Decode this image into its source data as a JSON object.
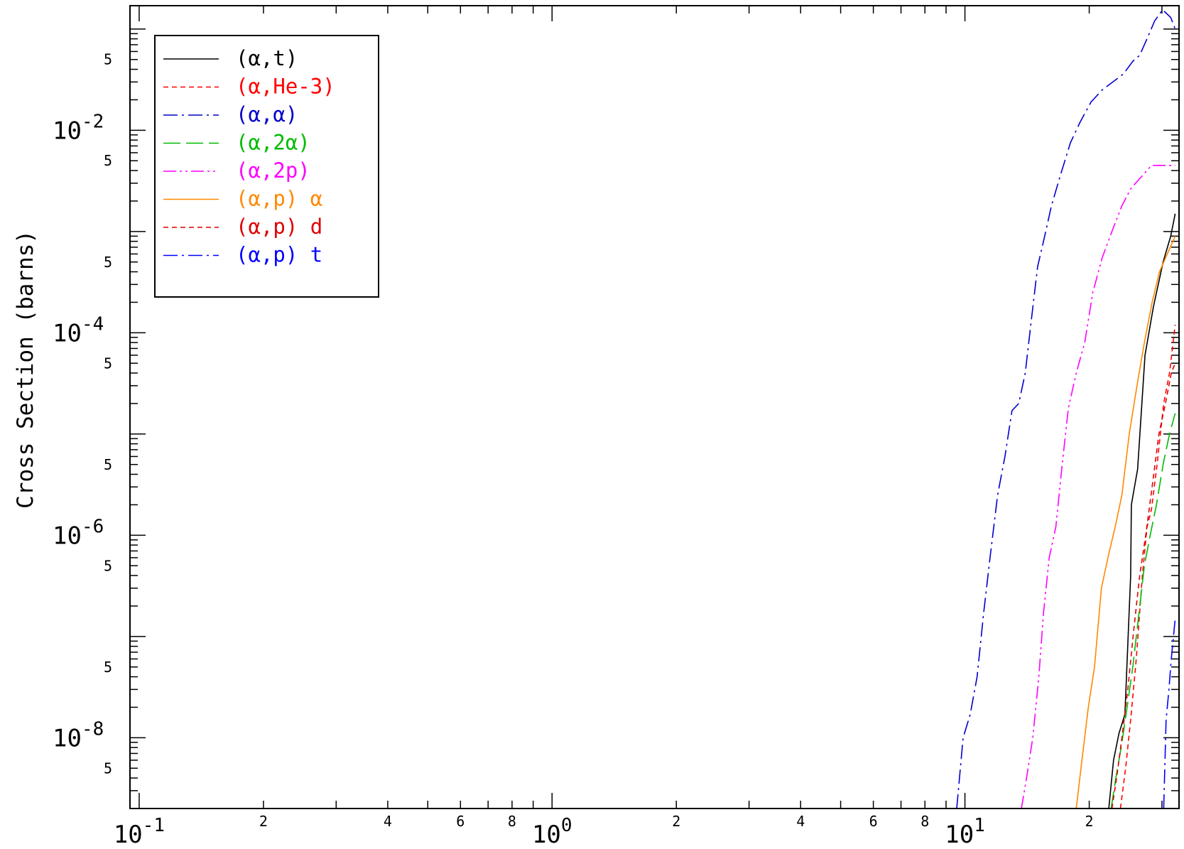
{
  "chart_data": {
    "type": "line",
    "title": "",
    "xlabel": "",
    "ylabel": "Cross Section (barns)",
    "xscale": "log",
    "yscale": "log",
    "xlim": [
      0.095,
      33
    ],
    "ylim": [
      2e-09,
      0.17
    ],
    "x_major_ticks": [
      {
        "value": 0.1,
        "base": "10",
        "exp": "-1"
      },
      {
        "value": 1,
        "base": "10",
        "exp": "0"
      },
      {
        "value": 10,
        "base": "10",
        "exp": "1"
      }
    ],
    "x_minor_labels": [
      {
        "value": 0.2,
        "label": "2"
      },
      {
        "value": 0.4,
        "label": "4"
      },
      {
        "value": 0.6,
        "label": "6"
      },
      {
        "value": 0.8,
        "label": "8"
      },
      {
        "value": 2,
        "label": "2"
      },
      {
        "value": 4,
        "label": "4"
      },
      {
        "value": 6,
        "label": "6"
      },
      {
        "value": 8,
        "label": "8"
      },
      {
        "value": 20,
        "label": "2"
      }
    ],
    "y_major_ticks": [
      {
        "value": 0.01,
        "base": "10",
        "exp": "-2"
      },
      {
        "value": 0.0001,
        "base": "10",
        "exp": "-4"
      },
      {
        "value": 1e-06,
        "base": "10",
        "exp": "-6"
      },
      {
        "value": 1e-08,
        "base": "10",
        "exp": "-8"
      }
    ],
    "y_minor_labels": [
      {
        "value": 0.05,
        "label": "5"
      },
      {
        "value": 0.005,
        "label": "5"
      },
      {
        "value": 0.0005,
        "label": "5"
      },
      {
        "value": 5e-05,
        "label": "5"
      },
      {
        "value": 5e-06,
        "label": "5"
      },
      {
        "value": 5e-07,
        "label": "5"
      },
      {
        "value": 5e-08,
        "label": "5"
      },
      {
        "value": 5e-09,
        "label": "5"
      }
    ],
    "grid": false,
    "legend_position": "top-left",
    "series": [
      {
        "name": "(α,t)",
        "color": "#000000",
        "dash": "solid",
        "x": [
          22.3,
          22.9,
          23.6,
          24.4,
          25.2,
          25.3,
          26.2,
          27.3,
          28.6,
          30.2,
          31.5,
          32.3
        ],
        "y": [
          2e-09,
          6e-09,
          1.1e-08,
          1.7e-08,
          4e-07,
          2e-06,
          4.5e-06,
          6e-05,
          0.00018,
          0.0005,
          0.0009,
          0.0015
        ]
      },
      {
        "name": "(α,He-3)",
        "color": "#ff0000",
        "dash": "dashed",
        "x": [
          23.8,
          24.5,
          25.2,
          26.0,
          26.9,
          27.6,
          28.3,
          29.2,
          30.3,
          31.3,
          32.3
        ],
        "y": [
          2e-09,
          5e-09,
          1.5e-08,
          6e-08,
          4e-07,
          1.2e-06,
          1.8e-06,
          5e-06,
          2e-05,
          4e-05,
          0.00012
        ]
      },
      {
        "name": "(α,α)",
        "color": "#0000cc",
        "dash": "dashdot",
        "x": [
          9.55,
          9.9,
          10.3,
          10.7,
          11.1,
          11.5,
          12.0,
          12.5,
          13.0,
          13.5,
          14.0,
          14.5,
          15.0,
          15.5,
          16.2,
          17.0,
          18.0,
          19.0,
          20.2,
          21.5,
          22.8,
          24.2,
          25.5,
          26.5,
          27.6,
          28.8,
          30.1,
          31.5,
          32.3
        ],
        "y": [
          2e-09,
          1e-08,
          1.7e-08,
          4e-08,
          1.7e-07,
          6e-07,
          2.5e-06,
          6e-06,
          1.7e-05,
          2e-05,
          4e-05,
          0.00014,
          0.00045,
          0.0008,
          0.0018,
          0.0035,
          0.0075,
          0.012,
          0.019,
          0.025,
          0.03,
          0.036,
          0.048,
          0.055,
          0.08,
          0.12,
          0.155,
          0.13,
          0.1
        ]
      },
      {
        "name": "(α,2α)",
        "color": "#00bb00",
        "dash": "longdash",
        "x": [
          22.6,
          23.2,
          23.9,
          24.7,
          25.5,
          26.3,
          27.2,
          28.1,
          29.1,
          30.2,
          31.3,
          32.3
        ],
        "y": [
          2e-09,
          4e-09,
          8e-09,
          2e-08,
          5e-08,
          1.5e-07,
          5e-07,
          1e-06,
          2e-06,
          5e-06,
          1e-05,
          1.6e-05
        ]
      },
      {
        "name": "(α,2p)",
        "color": "#ff00ff",
        "dash": "dashdotdot",
        "x": [
          13.7,
          14.1,
          14.6,
          15.1,
          15.5,
          16.0,
          16.6,
          17.2,
          17.8,
          18.6,
          19.5,
          20.4,
          21.5,
          22.7,
          24.0,
          25.3,
          26.8,
          28.3,
          30.0,
          31.5,
          32.3
        ],
        "y": [
          2e-09,
          4e-09,
          1e-08,
          4e-08,
          1.7e-07,
          6e-07,
          1.2e-06,
          5e-06,
          1.8e-05,
          4e-05,
          8e-05,
          0.00025,
          0.00055,
          0.001,
          0.0018,
          0.0027,
          0.0035,
          0.0045,
          0.0045,
          0.0045,
          0.0045
        ]
      },
      {
        "name": "(α,p) α",
        "color": "#ff8800",
        "dash": "solid",
        "x": [
          18.6,
          19.2,
          19.9,
          20.6,
          21.4,
          22.2,
          23.1,
          24.0,
          25.0,
          26.1,
          27.2,
          28.4,
          29.6,
          30.9,
          32.3
        ],
        "y": [
          2e-09,
          6e-09,
          2e-08,
          5e-08,
          3e-07,
          6e-07,
          1.2e-06,
          2.5e-06,
          1e-05,
          3e-05,
          8e-05,
          0.0002,
          0.0004,
          0.0006,
          0.0009
        ]
      },
      {
        "name": "(α,p) d",
        "color": "#dd0000",
        "dash": "dashed",
        "x": [
          22.7,
          23.3,
          24.0,
          24.8,
          25.6,
          26.5,
          27.4,
          28.4,
          29.5,
          30.6,
          31.6,
          32.3
        ],
        "y": [
          2e-09,
          4e-09,
          1e-08,
          3e-08,
          1.1e-07,
          4e-07,
          1e-06,
          3e-06,
          1e-05,
          2e-05,
          4e-05,
          5e-05
        ]
      },
      {
        "name": "(α,p) t",
        "color": "#0000ff",
        "dash": "dashdot",
        "x": [
          30.3,
          30.7,
          31.2,
          31.6,
          32.0,
          32.3
        ],
        "y": [
          2e-09,
          1.5e-08,
          3e-08,
          6e-08,
          1e-07,
          1.5e-07
        ]
      }
    ]
  }
}
